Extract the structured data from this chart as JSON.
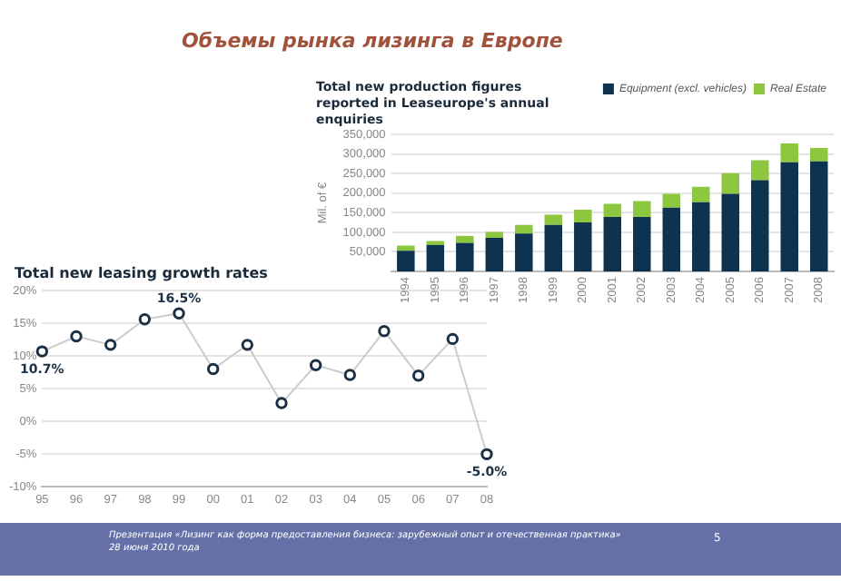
{
  "chart_data": [
    {
      "type": "other",
      "title": "Объемы рынка лизинга в Европе",
      "annotations": [
        "Презентация «Лизинг как форма предоставления бизнеса: зарубежный опыт и отечественная практика»",
        "28 июня 2010 года",
        "5"
      ]
    },
    {
      "type": "bar",
      "title": "Total new production figures reported in Leaseurope's annual enquiries",
      "ylabel": "Mil. of €",
      "categories": [
        "1994",
        "1995",
        "1996",
        "1997",
        "1998",
        "1999",
        "2000",
        "2001",
        "2002",
        "2003",
        "2004",
        "2005",
        "2006",
        "2007",
        "2008"
      ],
      "stacked": true,
      "series": [
        {
          "name": "Equipment (excl. vehicles)",
          "color": "#0d3350",
          "values": [
            53000,
            68000,
            73000,
            86000,
            97000,
            119000,
            125000,
            139000,
            139000,
            163000,
            177000,
            198000,
            233000,
            279000,
            281000
          ]
        },
        {
          "name": "Real Estate",
          "color": "#8dc63f",
          "values": [
            13000,
            10000,
            18000,
            15000,
            22000,
            26000,
            33000,
            34000,
            41000,
            35000,
            39000,
            53000,
            51000,
            48000,
            34000
          ]
        }
      ],
      "ylim": [
        0,
        350000
      ],
      "yticks": [
        {
          "value": 50000,
          "label": "50,000"
        },
        {
          "value": 100000,
          "label": "100,000"
        },
        {
          "value": 150000,
          "label": "150,000"
        },
        {
          "value": 200000,
          "label": "200,000"
        },
        {
          "value": 250000,
          "label": "250,000"
        },
        {
          "value": 300000,
          "label": "300,000"
        },
        {
          "value": 350000,
          "label": "350,000"
        }
      ],
      "grid": "y",
      "legend": "top right"
    },
    {
      "type": "line",
      "title": "Total new leasing growth rates",
      "categories": [
        "95",
        "96",
        "97",
        "98",
        "99",
        "00",
        "01",
        "02",
        "03",
        "04",
        "05",
        "06",
        "07",
        "08"
      ],
      "series": [
        {
          "color": "#1b2f45",
          "values": [
            10.7,
            13.0,
            11.7,
            15.6,
            16.5,
            8.0,
            11.7,
            2.8,
            8.6,
            7.1,
            13.8,
            7.0,
            12.6,
            -5.0
          ],
          "value_labels": [
            "10.7%",
            null,
            null,
            null,
            "16.5%",
            null,
            null,
            null,
            null,
            null,
            null,
            null,
            null,
            "-5.0%"
          ]
        }
      ],
      "ylim": [
        -10,
        20
      ],
      "yticks": [
        {
          "value": -10,
          "label": "-10%"
        },
        {
          "value": -5,
          "label": "-5%"
        },
        {
          "value": 0,
          "label": "0%"
        },
        {
          "value": 5,
          "label": "5%"
        },
        {
          "value": 10,
          "label": "10%"
        },
        {
          "value": 15,
          "label": "15%"
        },
        {
          "value": 20,
          "label": "20%"
        }
      ],
      "grid": "y",
      "marker": "circle",
      "line_style": "solid"
    }
  ]
}
